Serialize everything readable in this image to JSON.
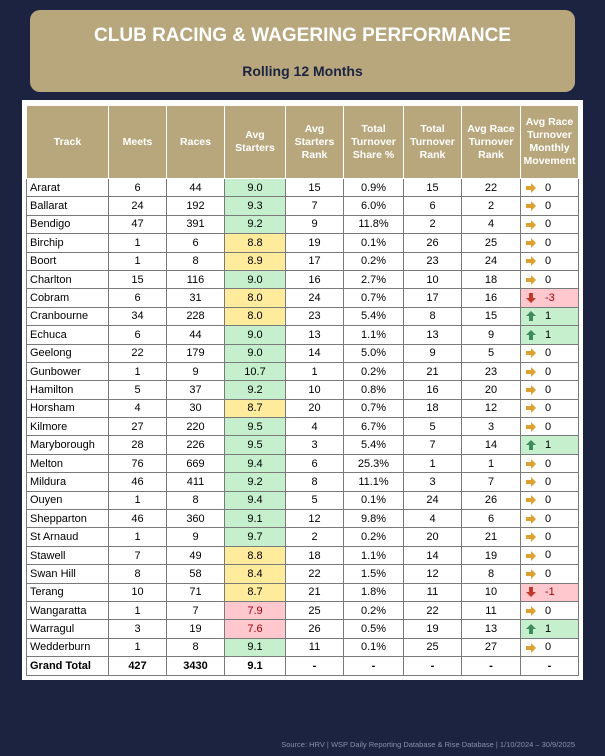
{
  "header": {
    "title": "CLUB RACING & WAGERING PERFORMANCE",
    "subtitle": "Rolling 12 Months"
  },
  "table": {
    "columns": [
      "Track",
      "Meets",
      "Races",
      "Avg Starters",
      "Avg Starters Rank",
      "Total Turnover Share %",
      "Total Turnover Rank",
      "Avg Race Turnover Rank",
      "Avg Race Turnover Monthly Movement"
    ],
    "rows": [
      [
        "Ararat",
        "6",
        "44",
        "9.0",
        "15",
        "0.9%",
        "15",
        "22",
        "0"
      ],
      [
        "Ballarat",
        "24",
        "192",
        "9.3",
        "7",
        "6.0%",
        "6",
        "2",
        "0"
      ],
      [
        "Bendigo",
        "47",
        "391",
        "9.2",
        "9",
        "11.8%",
        "2",
        "4",
        "0"
      ],
      [
        "Birchip",
        "1",
        "6",
        "8.8",
        "19",
        "0.1%",
        "26",
        "25",
        "0"
      ],
      [
        "Boort",
        "1",
        "8",
        "8.9",
        "17",
        "0.2%",
        "23",
        "24",
        "0"
      ],
      [
        "Charlton",
        "15",
        "116",
        "9.0",
        "16",
        "2.7%",
        "10",
        "18",
        "0"
      ],
      [
        "Cobram",
        "6",
        "31",
        "8.0",
        "24",
        "0.7%",
        "17",
        "16",
        "-3"
      ],
      [
        "Cranbourne",
        "34",
        "228",
        "8.0",
        "23",
        "5.4%",
        "8",
        "15",
        "1"
      ],
      [
        "Echuca",
        "6",
        "44",
        "9.0",
        "13",
        "1.1%",
        "13",
        "9",
        "1"
      ],
      [
        "Geelong",
        "22",
        "179",
        "9.0",
        "14",
        "5.0%",
        "9",
        "5",
        "0"
      ],
      [
        "Gunbower",
        "1",
        "9",
        "10.7",
        "1",
        "0.2%",
        "21",
        "23",
        "0"
      ],
      [
        "Hamilton",
        "5",
        "37",
        "9.2",
        "10",
        "0.8%",
        "16",
        "20",
        "0"
      ],
      [
        "Horsham",
        "4",
        "30",
        "8.7",
        "20",
        "0.7%",
        "18",
        "12",
        "0"
      ],
      [
        "Kilmore",
        "27",
        "220",
        "9.5",
        "4",
        "6.7%",
        "5",
        "3",
        "0"
      ],
      [
        "Maryborough",
        "28",
        "226",
        "9.5",
        "3",
        "5.4%",
        "7",
        "14",
        "1"
      ],
      [
        "Melton",
        "76",
        "669",
        "9.4",
        "6",
        "25.3%",
        "1",
        "1",
        "0"
      ],
      [
        "Mildura",
        "46",
        "411",
        "9.2",
        "8",
        "11.1%",
        "3",
        "7",
        "0"
      ],
      [
        "Ouyen",
        "1",
        "8",
        "9.4",
        "5",
        "0.1%",
        "24",
        "26",
        "0"
      ],
      [
        "Shepparton",
        "46",
        "360",
        "9.1",
        "12",
        "9.8%",
        "4",
        "6",
        "0"
      ],
      [
        "St Arnaud",
        "1",
        "9",
        "9.7",
        "2",
        "0.2%",
        "20",
        "21",
        "0"
      ],
      [
        "Stawell",
        "7",
        "49",
        "8.8",
        "18",
        "1.1%",
        "14",
        "19",
        "0"
      ],
      [
        "Swan Hill",
        "8",
        "58",
        "8.4",
        "22",
        "1.5%",
        "12",
        "8",
        "0"
      ],
      [
        "Terang",
        "10",
        "71",
        "8.7",
        "21",
        "1.8%",
        "11",
        "10",
        "-1"
      ],
      [
        "Wangaratta",
        "1",
        "7",
        "7.9",
        "25",
        "0.2%",
        "22",
        "11",
        "0"
      ],
      [
        "Warragul",
        "3",
        "19",
        "7.6",
        "26",
        "0.5%",
        "19",
        "13",
        "1"
      ],
      [
        "Wedderburn",
        "1",
        "8",
        "9.1",
        "11",
        "0.1%",
        "25",
        "27",
        "0"
      ]
    ],
    "total": [
      "Grand Total",
      "427",
      "3430",
      "9.1",
      "-",
      "-",
      "-",
      "-",
      "-"
    ]
  },
  "footer": "Source: HRV | WSP Daily Reporting Database & Rise Database | 1/10/2024 – 30/9/2025"
}
